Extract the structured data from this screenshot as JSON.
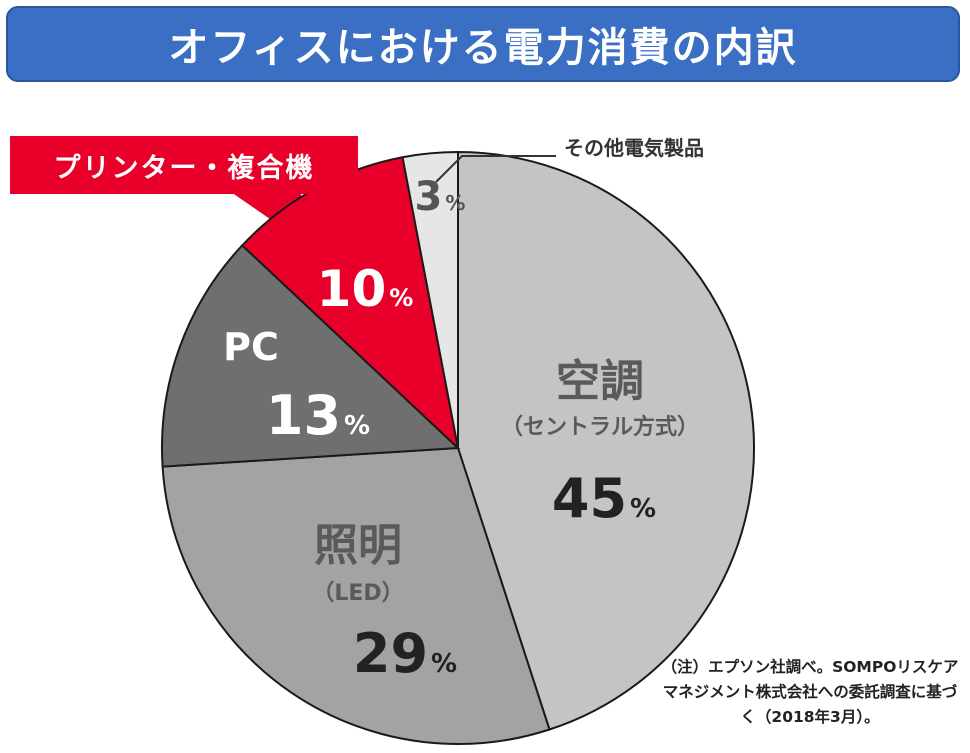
{
  "title": "オフィスにおける電力消費の内訳",
  "note": "（注）エプソン社調べ。SOMPOリスケアマネジメント株式会社への委託調査に基づく（2018年3月）。",
  "chart_data": {
    "type": "pie",
    "title": "オフィスにおける電力消費の内訳",
    "unit": "%",
    "slices": [
      {
        "name": "空調",
        "sub": "（セントラル方式）",
        "value": 45,
        "value_text": "45",
        "color": "#c4c4c4",
        "text_color": "#222222",
        "name_color": "#5a5a5a"
      },
      {
        "name": "照明",
        "sub": "（LED）",
        "value": 29,
        "value_text": "29",
        "color": "#a3a3a3",
        "text_color": "#222222",
        "name_color": "#5a5a5a"
      },
      {
        "name": "PC",
        "sub": "",
        "value": 13,
        "value_text": "13",
        "color": "#6f6f6f",
        "text_color": "#ffffff",
        "name_color": "#ffffff"
      },
      {
        "name": "プリンター・複合機",
        "sub": "",
        "value": 10,
        "value_text": "10",
        "color": "#e8002a",
        "text_color": "#ffffff",
        "name_color": "#ffffff"
      },
      {
        "name": "その他電気製品",
        "sub": "",
        "value": 3,
        "value_text": "3",
        "color": "#e6e6e6",
        "text_color": "#555555",
        "name_color": "#333333"
      }
    ]
  }
}
